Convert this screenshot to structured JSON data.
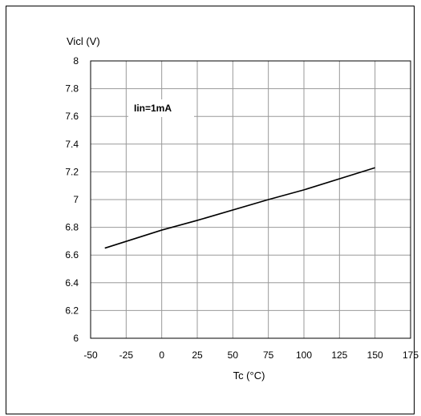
{
  "chart_data": {
    "type": "line",
    "ylabel_top": "Vicl (V)",
    "xlabel": "Tc (°C)",
    "annotation": "Iin=1mA",
    "xlim": [
      -50,
      175
    ],
    "ylim": [
      6,
      8
    ],
    "xticks": [
      -50,
      -25,
      0,
      25,
      50,
      75,
      100,
      125,
      150,
      175
    ],
    "yticks": [
      6,
      6.2,
      6.4,
      6.6,
      6.8,
      7,
      7.2,
      7.4,
      7.6,
      7.8,
      8
    ],
    "grid": true,
    "series": [
      {
        "x": [
          -40,
          0,
          25,
          75,
          100,
          150
        ],
        "y": [
          6.65,
          6.78,
          6.85,
          7.0,
          7.07,
          7.23
        ]
      }
    ]
  }
}
